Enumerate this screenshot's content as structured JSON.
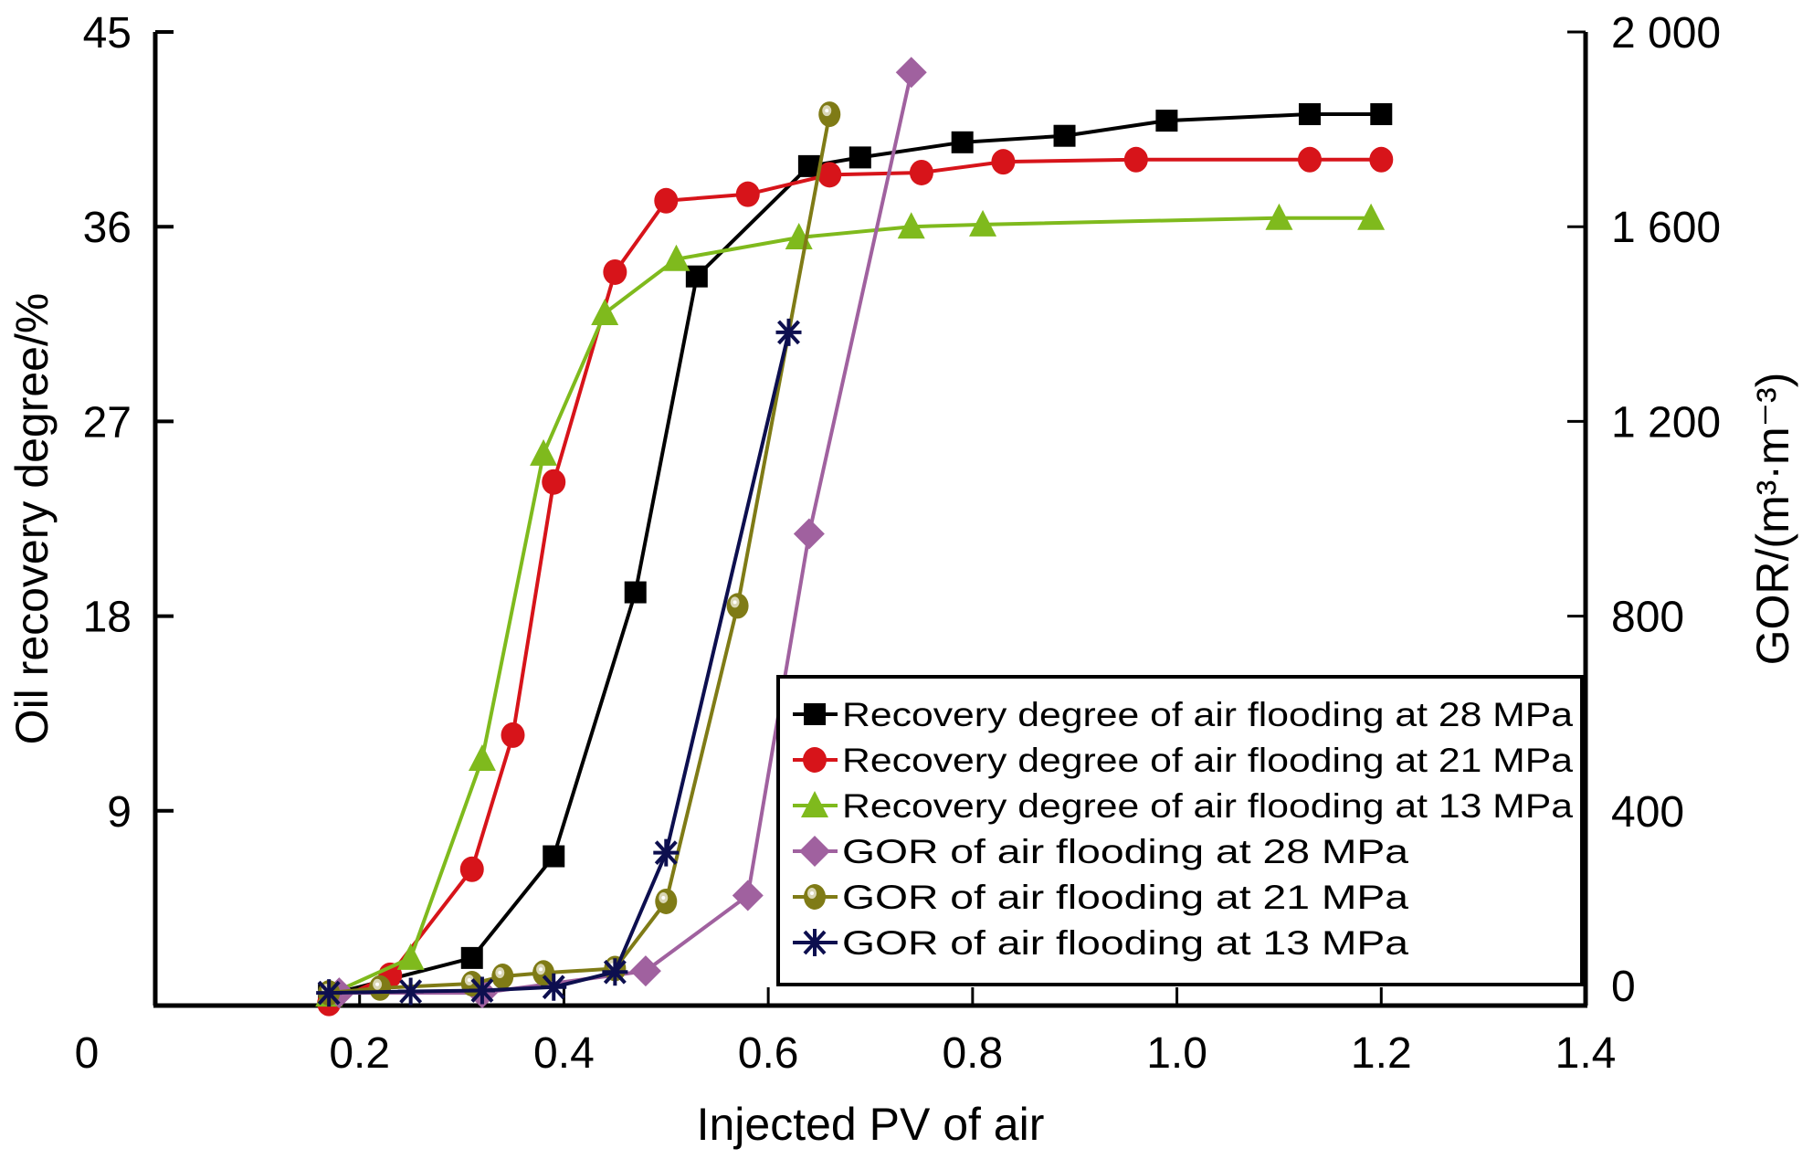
{
  "chart_data": {
    "type": "line",
    "title": "",
    "xlabel": "Injected PV of air",
    "ylabel": "Oil recovery degree/%",
    "y2label": "GOR/(m³·m⁻³)",
    "xlim": [
      0,
      1.4
    ],
    "ylim": [
      0,
      45
    ],
    "y2lim": [
      0,
      2000
    ],
    "xticks": [
      "0",
      "0.2",
      "0.4",
      "0.6",
      "0.8",
      "1.0",
      "1.2",
      "1.4"
    ],
    "yticks": [
      "0",
      "9",
      "18",
      "27",
      "36",
      "45"
    ],
    "y2ticks": [
      "0",
      "400",
      "800",
      "1 200",
      "1 600",
      "2 000"
    ],
    "grid": false,
    "legend_position": "bottom-right",
    "series": [
      {
        "name": "Recovery degree of air flooding at 28 MPa",
        "axis": "left",
        "color": "#000000",
        "marker": "square",
        "x": [
          0.17,
          0.31,
          0.39,
          0.47,
          0.53,
          0.64,
          0.69,
          0.79,
          0.89,
          0.99,
          1.13,
          1.2
        ],
        "y": [
          0.5,
          2.2,
          6.9,
          19.1,
          33.7,
          38.8,
          39.2,
          39.9,
          40.2,
          40.9,
          41.2,
          41.2
        ]
      },
      {
        "name": "Recovery degree of air flooding at 21 MPa",
        "axis": "left",
        "color": "#d7141a",
        "marker": "circle",
        "x": [
          0.17,
          0.23,
          0.31,
          0.35,
          0.39,
          0.45,
          0.5,
          0.58,
          0.66,
          0.75,
          0.83,
          0.96,
          1.13,
          1.2
        ],
        "y": [
          0.1,
          1.4,
          6.3,
          12.5,
          24.2,
          33.9,
          37.2,
          37.5,
          38.4,
          38.5,
          39.0,
          39.1,
          39.1,
          39.1
        ]
      },
      {
        "name": "Recovery degree of air flooding at 13 MPa",
        "axis": "left",
        "color": "#7fba1d",
        "marker": "triangle",
        "x": [
          0.17,
          0.25,
          0.32,
          0.38,
          0.44,
          0.51,
          0.63,
          0.74,
          0.81,
          1.1,
          1.19
        ],
        "y": [
          0.5,
          2.2,
          11.4,
          25.5,
          32.0,
          34.5,
          35.5,
          36.0,
          36.1,
          36.4,
          36.4
        ]
      },
      {
        "name": "GOR of air flooding at 28 MPa",
        "axis": "right",
        "color": "#a0619f",
        "marker": "diamond",
        "x": [
          0.18,
          0.32,
          0.48,
          0.58,
          0.64,
          0.74
        ],
        "y": [
          26,
          26,
          71,
          226,
          969,
          1917
        ]
      },
      {
        "name": "GOR of air flooding at 21 MPa",
        "axis": "right",
        "color": "#7f7b16",
        "marker": "sphere",
        "x": [
          0.17,
          0.22,
          0.31,
          0.34,
          0.38,
          0.45,
          0.5,
          0.57,
          0.66
        ],
        "y": [
          26,
          36,
          45,
          60,
          67,
          76,
          214,
          821,
          1831
        ]
      },
      {
        "name": "GOR of air flooding at 13 MPa",
        "axis": "right",
        "color": "#0d0f4f",
        "marker": "asterisk",
        "x": [
          0.17,
          0.25,
          0.32,
          0.39,
          0.45,
          0.5,
          0.62
        ],
        "y": [
          26,
          29,
          31,
          38,
          69,
          314,
          1383
        ]
      }
    ]
  }
}
